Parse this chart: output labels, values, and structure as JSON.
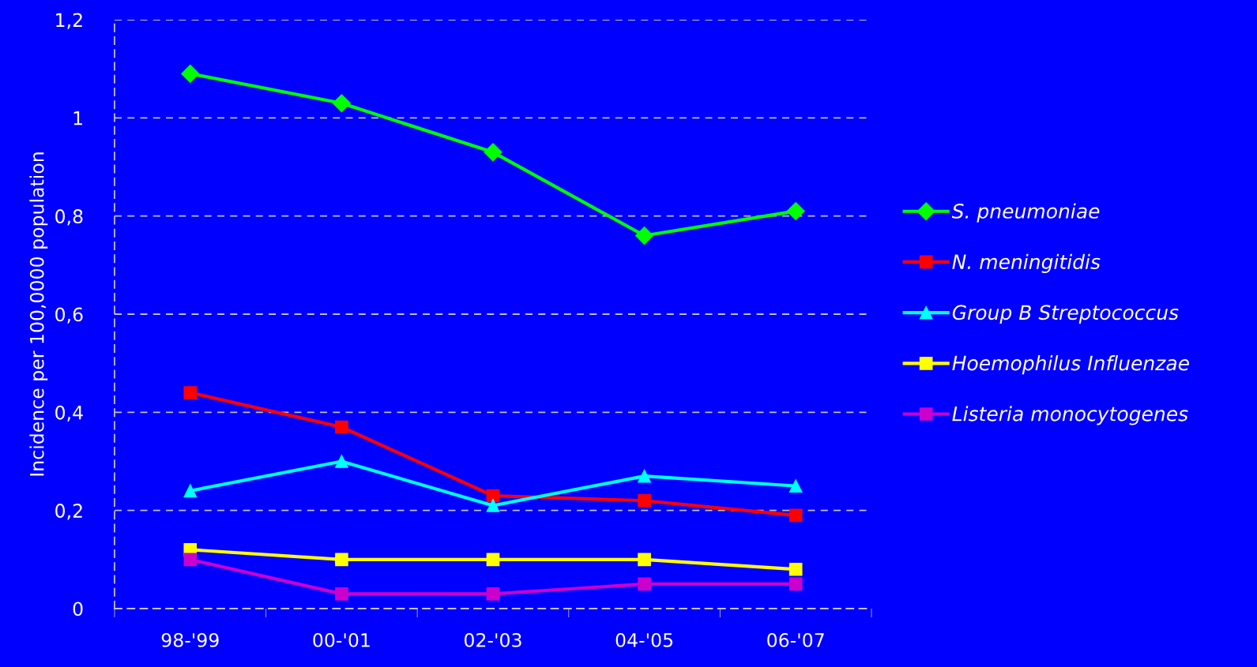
{
  "chart_data": {
    "type": "line",
    "ylabel": "Incidence per 100,0000 population",
    "categories": [
      "98-'99",
      "00-'01",
      "02-'03",
      "04-'05",
      "06-'07"
    ],
    "series": [
      {
        "name": "S. pneumoniae",
        "color": "#00ff00",
        "marker": "diamond",
        "values": [
          1.09,
          1.03,
          0.93,
          0.76,
          0.81
        ]
      },
      {
        "name": "N. meningitidis",
        "color": "#ff0000",
        "marker": "square",
        "values": [
          0.44,
          0.37,
          0.23,
          0.22,
          0.19
        ]
      },
      {
        "name": "Group B Streptococcus",
        "color": "#00ffff",
        "marker": "triangle",
        "values": [
          0.24,
          0.3,
          0.21,
          0.27,
          0.25
        ]
      },
      {
        "name": "Hoemophilus Influenzae",
        "color": "#ffff00",
        "marker": "square",
        "values": [
          0.12,
          0.1,
          0.1,
          0.1,
          0.08
        ]
      },
      {
        "name": "Listeria monocytogenes",
        "color": "#cc00cc",
        "marker": "square",
        "values": [
          0.1,
          0.03,
          0.03,
          0.05,
          0.05
        ]
      }
    ],
    "ylim": [
      0,
      1.2
    ],
    "yticks": [
      0,
      {
        "value": 0.2,
        "label": "0,2"
      },
      {
        "value": 0.4,
        "label": "0,4"
      },
      {
        "value": 0.6,
        "label": "0,6"
      },
      {
        "value": 0.8,
        "label": "0,8"
      },
      1,
      {
        "value": 1.2,
        "label": "1,2"
      }
    ],
    "grid": "y",
    "legend": "right",
    "line_style": "solid"
  }
}
